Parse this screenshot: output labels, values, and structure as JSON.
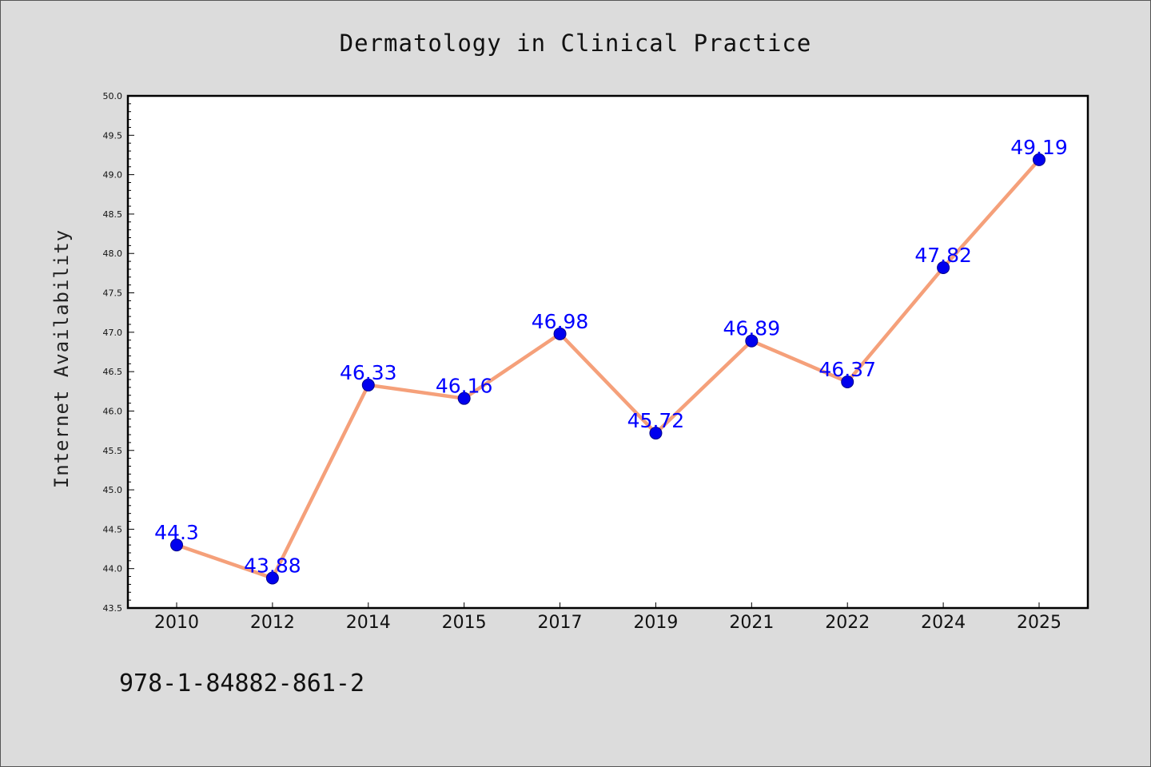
{
  "chart_data": {
    "type": "line",
    "title": "Dermatology in Clinical Practice",
    "ylabel": "Internet Availability",
    "xlabel": "",
    "categories": [
      "2010",
      "2012",
      "2014",
      "2015",
      "2017",
      "2019",
      "2021",
      "2022",
      "2024",
      "2025"
    ],
    "series": [
      {
        "values": [
          44.3,
          43.88,
          46.33,
          46.16,
          46.98,
          45.72,
          46.89,
          46.37,
          47.82,
          49.19
        ],
        "data_labels": [
          "44.3",
          "43.88",
          "46.33",
          "46.16",
          "46.98",
          "45.72",
          "46.89",
          "46.37",
          "47.82",
          "49.19"
        ]
      }
    ],
    "ylim": [
      43.5,
      50.0
    ],
    "yticks": [
      "43.5",
      "44.0",
      "44.5",
      "45.0",
      "45.5",
      "46.0",
      "46.5",
      "47.0",
      "47.5",
      "48.0",
      "48.5",
      "49.0",
      "49.5",
      "50.0"
    ],
    "grid": false,
    "legend": "none",
    "colors": {
      "line": "#f5a07a",
      "marker": "#0000ee",
      "label": "#0000ff",
      "background": "#dcdcdc",
      "plot_background": "#ffffff"
    }
  },
  "footer": {
    "text": "978-1-84882-861-2"
  }
}
